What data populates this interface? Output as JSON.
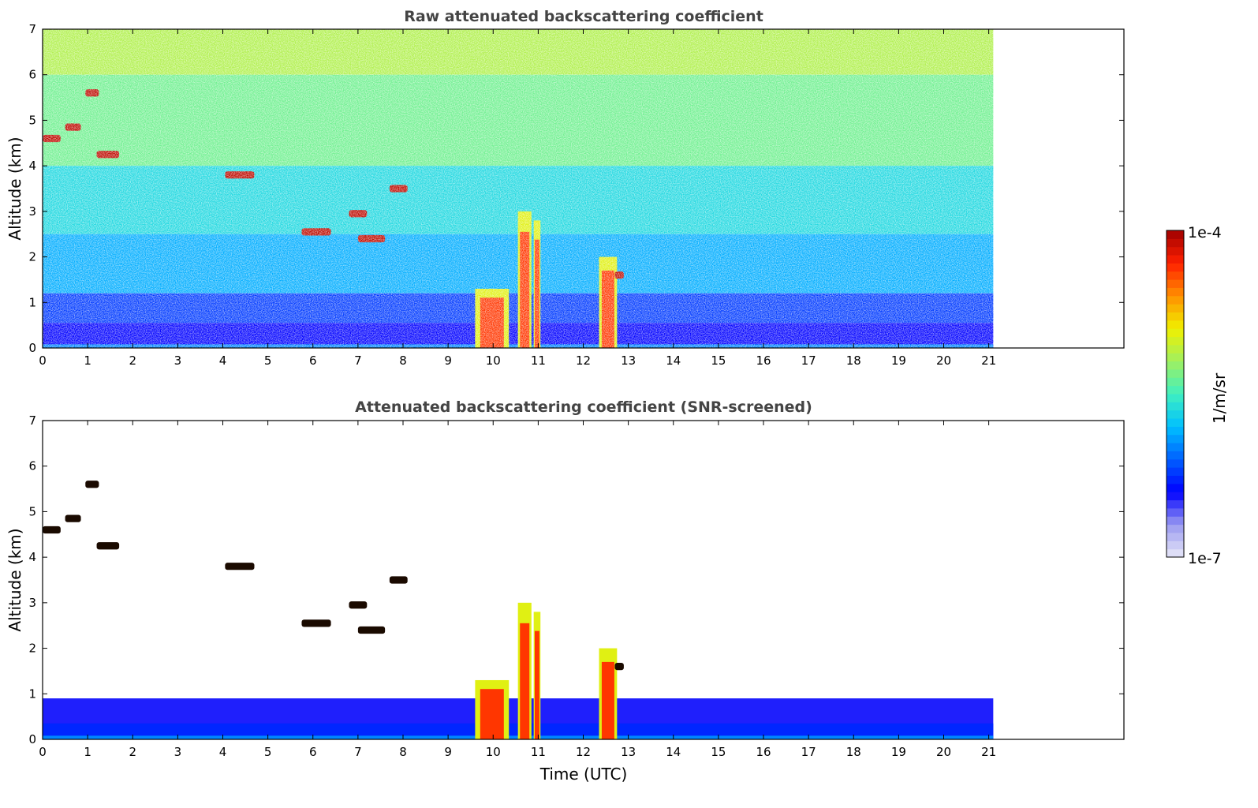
{
  "chart_data": [
    {
      "type": "heatmap",
      "title": "Raw attenuated backscattering coefficient",
      "xlabel": "",
      "ylabel": "Altitude (km)",
      "xlim": [
        0,
        24
      ],
      "ylim": [
        0,
        7
      ],
      "x_ticks": [
        0,
        1,
        2,
        3,
        4,
        5,
        6,
        7,
        8,
        9,
        10,
        11,
        12,
        13,
        14,
        15,
        16,
        17,
        18,
        19,
        20,
        21
      ],
      "y_ticks": [
        0,
        1,
        2,
        3,
        4,
        5,
        6,
        7
      ],
      "data_end_time": 21.1,
      "grid": false,
      "features": {
        "boundary_layer_top_km": 0.55,
        "convective_plumes": [
          {
            "start": 9.6,
            "end": 10.35,
            "top_km": 1.3
          },
          {
            "start": 10.55,
            "end": 10.85,
            "top_km": 3.0
          },
          {
            "start": 10.9,
            "end": 11.05,
            "top_km": 2.8
          },
          {
            "start": 12.35,
            "end": 12.75,
            "top_km": 2.0
          }
        ],
        "cloud_layers": [
          {
            "start": 0.0,
            "end": 0.4,
            "altitude_km": 4.6
          },
          {
            "start": 0.5,
            "end": 0.85,
            "altitude_km": 4.85
          },
          {
            "start": 0.95,
            "end": 1.25,
            "altitude_km": 5.6
          },
          {
            "start": 1.2,
            "end": 1.7,
            "altitude_km": 4.25
          },
          {
            "start": 4.05,
            "end": 4.7,
            "altitude_km": 3.8
          },
          {
            "start": 5.75,
            "end": 6.4,
            "altitude_km": 2.55
          },
          {
            "start": 6.8,
            "end": 7.2,
            "altitude_km": 2.95
          },
          {
            "start": 7.0,
            "end": 7.6,
            "altitude_km": 2.4
          },
          {
            "start": 7.7,
            "end": 8.1,
            "altitude_km": 3.5
          },
          {
            "start": 12.7,
            "end": 12.9,
            "altitude_km": 1.6
          }
        ]
      }
    },
    {
      "type": "heatmap",
      "title": "Attenuated backscattering coefficient (SNR-screened)",
      "xlabel": "Time (UTC)",
      "ylabel": "Altitude (km)",
      "xlim": [
        0,
        24
      ],
      "ylim": [
        0,
        7
      ],
      "x_ticks": [
        0,
        1,
        2,
        3,
        4,
        5,
        6,
        7,
        8,
        9,
        10,
        11,
        12,
        13,
        14,
        15,
        16,
        17,
        18,
        19,
        20,
        21
      ],
      "y_ticks": [
        0,
        1,
        2,
        3,
        4,
        5,
        6,
        7
      ],
      "data_end_time": 21.1,
      "grid": false,
      "features": {
        "boundary_layer_top_km": 0.9,
        "screened_above_boundary_layer": true
      }
    }
  ],
  "colorbar": {
    "label": "1/m/sr",
    "min_label": "1e-7",
    "max_label": "1e-4",
    "colormap": [
      "#e8e8f8",
      "#9a9af0",
      "#0000ff",
      "#0060ff",
      "#00c0ff",
      "#40f0c0",
      "#a0f060",
      "#f0f000",
      "#ff9000",
      "#ff2000",
      "#a00000"
    ]
  }
}
